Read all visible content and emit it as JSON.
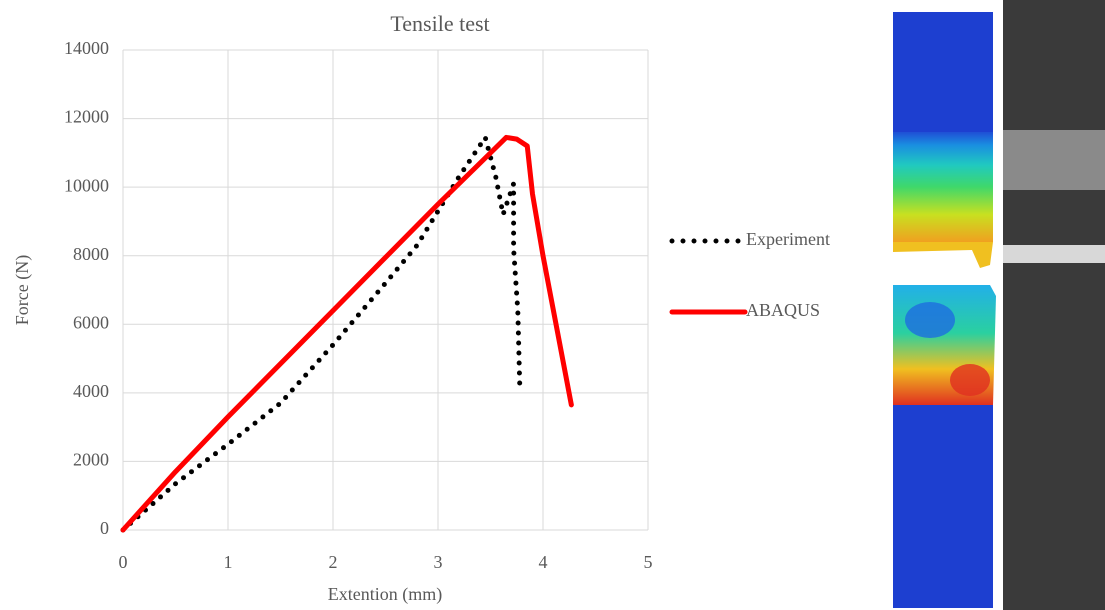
{
  "chart_data": {
    "type": "line",
    "title": "Tensile test",
    "x_label": "Extention (mm)",
    "y_label": "Force (N)",
    "xlim": [
      0,
      5
    ],
    "ylim": [
      0,
      14000
    ],
    "xticks": [
      0,
      1,
      2,
      3,
      4,
      5
    ],
    "yticks": [
      0,
      2000,
      4000,
      6000,
      8000,
      10000,
      12000,
      14000
    ],
    "grid": true,
    "series": [
      {
        "name": "Experiment",
        "color": "#000000",
        "style": "dotted",
        "x": [
          0,
          0.5,
          1,
          1.5,
          2,
          2.5,
          2.8,
          3.0,
          3.2,
          3.45,
          3.55,
          3.62,
          3.72,
          3.72,
          3.76,
          3.78
        ],
        "values": [
          0,
          1350,
          2500,
          3700,
          5400,
          7200,
          8300,
          9300,
          10300,
          11450,
          10300,
          9200,
          10100,
          8200,
          6400,
          4050
        ]
      },
      {
        "name": "ABAQUS",
        "color": "#ff0000",
        "style": "solid",
        "x": [
          0,
          0.5,
          1,
          2,
          3,
          3.5,
          3.65,
          3.75,
          3.85,
          3.9,
          4.0,
          4.27
        ],
        "values": [
          0,
          1700,
          3300,
          6400,
          9500,
          11000,
          11450,
          11400,
          11200,
          9800,
          8000,
          3650
        ]
      }
    ]
  }
}
